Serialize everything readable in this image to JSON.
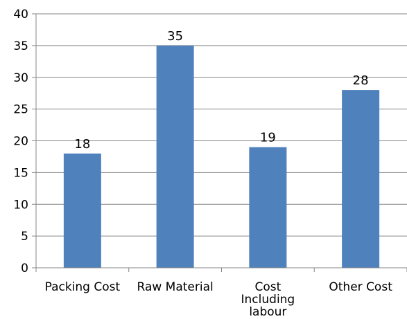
{
  "chart_data": {
    "type": "bar",
    "categories": [
      [
        "Packing Cost"
      ],
      [
        "Raw Material"
      ],
      [
        "Cost",
        "Including",
        "labour"
      ],
      [
        "Other Cost"
      ]
    ],
    "values": [
      18,
      35,
      19,
      28
    ],
    "data_labels": [
      "18",
      "35",
      "19",
      "28"
    ],
    "ylim": [
      0,
      40
    ],
    "yticks": [
      "0",
      "5",
      "10",
      "15",
      "20",
      "25",
      "30",
      "35",
      "40"
    ],
    "grid": true,
    "legend": "none",
    "title": "",
    "xlabel": "",
    "ylabel": "",
    "colors": {
      "bar": "#4f81bd",
      "grid": "#868686",
      "axis": "#868686"
    }
  }
}
